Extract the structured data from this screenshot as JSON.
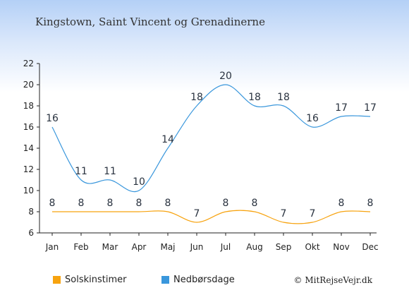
{
  "title": "Kingstown, Saint Vincent og Grenadinerne",
  "credit": "© MitRejseVejr.dk",
  "chart_data": {
    "type": "line",
    "categories": [
      "Jan",
      "Feb",
      "Mar",
      "Apr",
      "Maj",
      "Jun",
      "Jul",
      "Aug",
      "Sep",
      "Okt",
      "Nov",
      "Dec"
    ],
    "ylim": [
      6,
      22
    ],
    "yticks": [
      6,
      8,
      10,
      12,
      14,
      16,
      18,
      20,
      22
    ],
    "series": [
      {
        "name": "Solskinstimer",
        "color": "#f7a30f",
        "values": [
          8,
          8,
          8,
          8,
          8,
          7,
          8,
          8,
          7,
          7,
          8,
          8
        ]
      },
      {
        "name": "Nedbørsdage",
        "color": "#3a97dc",
        "values": [
          16,
          11,
          11,
          10,
          14,
          18,
          20,
          18,
          18,
          16,
          17,
          17
        ]
      }
    ],
    "legend": "bottom-left"
  }
}
